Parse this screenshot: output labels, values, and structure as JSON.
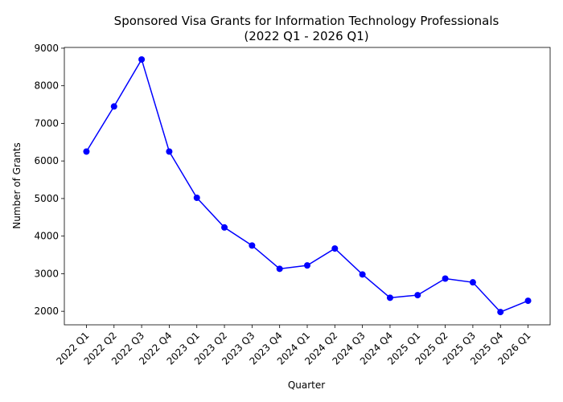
{
  "chart_data": {
    "type": "line",
    "title": [
      "Sponsored Visa Grants for Information Technology Professionals",
      "(2022 Q1 - 2026 Q1)"
    ],
    "x_label": "Quarter",
    "y_label": "Number of Grants",
    "categories": [
      "2022 Q1",
      "2022 Q2",
      "2022 Q3",
      "2022 Q4",
      "2023 Q1",
      "2023 Q2",
      "2023 Q3",
      "2023 Q4",
      "2024 Q1",
      "2024 Q2",
      "2024 Q3",
      "2024 Q4",
      "2025 Q1",
      "2025 Q2",
      "2025 Q3",
      "2025 Q4",
      "2026 Q1"
    ],
    "values": [
      6250,
      7450,
      8700,
      6250,
      5020,
      4230,
      3750,
      3130,
      3220,
      3670,
      2980,
      2360,
      2430,
      2870,
      2770,
      1980,
      2280
    ],
    "color": "#0000ff",
    "marker": true,
    "ylim": [
      1640,
      9020
    ],
    "yticks": [
      2000,
      3000,
      4000,
      5000,
      6000,
      7000,
      8000,
      9000
    ],
    "grid": false
  }
}
